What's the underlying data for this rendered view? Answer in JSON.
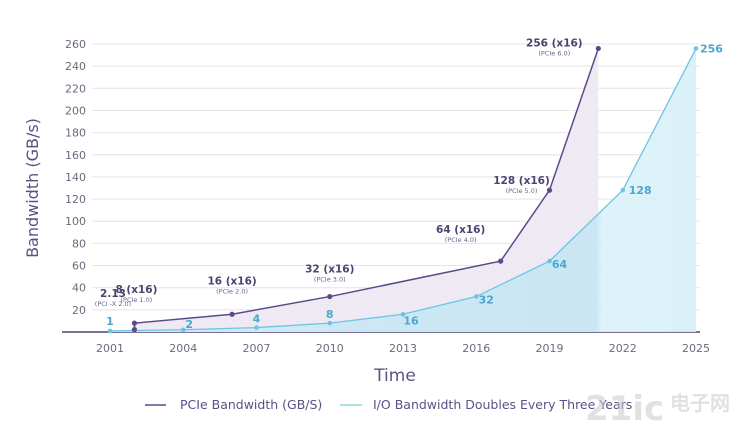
{
  "chart_data": {
    "type": "area",
    "title": "",
    "xlabel": "Time",
    "ylabel": "Bandwidth (GB/s)",
    "xlim": [
      2001,
      2025
    ],
    "ylim": [
      0,
      260
    ],
    "x_ticks": [
      2001,
      2004,
      2007,
      2010,
      2013,
      2016,
      2019,
      2022,
      2025
    ],
    "y_ticks": [
      20,
      40,
      60,
      80,
      100,
      120,
      140,
      160,
      180,
      200,
      220,
      240,
      260
    ],
    "grid": true,
    "legend_placement": "bottom",
    "series": [
      {
        "name": "PCIe Bandwidth (GB/S)",
        "color": "#5b4a8a",
        "fill": "#efe9f4",
        "points": [
          {
            "x": 2002,
            "y": 2.13,
            "label": "2.13",
            "sublabel": "(PCI -X 2.0)"
          },
          {
            "x": 2002,
            "y": 8,
            "label": "8 (x16)",
            "sublabel": "(PCIe 1.0)"
          },
          {
            "x": 2006,
            "y": 16,
            "label": "16 (x16)",
            "sublabel": "(PCIe 2.0)"
          },
          {
            "x": 2010,
            "y": 32,
            "label": "32 (x16)",
            "sublabel": "(PCIe 3.0)"
          },
          {
            "x": 2017,
            "y": 64,
            "label": "64 (x16)",
            "sublabel": "(PCIe 4.0)"
          },
          {
            "x": 2019,
            "y": 128,
            "label": "128 (x16)",
            "sublabel": "(PCIe 5.0)"
          },
          {
            "x": 2021,
            "y": 256,
            "label": "256 (x16)",
            "sublabel": "(PCIe 6.0)"
          }
        ]
      },
      {
        "name": "I/O Bandwidth Doubles Every Three Years",
        "color": "#6cc6e0",
        "fill": "#cfeaf5",
        "points": [
          {
            "x": 2001,
            "y": 1,
            "label": "1"
          },
          {
            "x": 2004,
            "y": 2,
            "label": "2"
          },
          {
            "x": 2007,
            "y": 4,
            "label": "4"
          },
          {
            "x": 2010,
            "y": 8,
            "label": "8"
          },
          {
            "x": 2013,
            "y": 16,
            "label": "16"
          },
          {
            "x": 2016,
            "y": 32,
            "label": "32"
          },
          {
            "x": 2019,
            "y": 64,
            "label": "64"
          },
          {
            "x": 2022,
            "y": 128,
            "label": "128"
          },
          {
            "x": 2025,
            "y": 256,
            "label": "256"
          }
        ]
      }
    ]
  },
  "watermark": {
    "text": "21ic",
    "text2": "电子网"
  }
}
